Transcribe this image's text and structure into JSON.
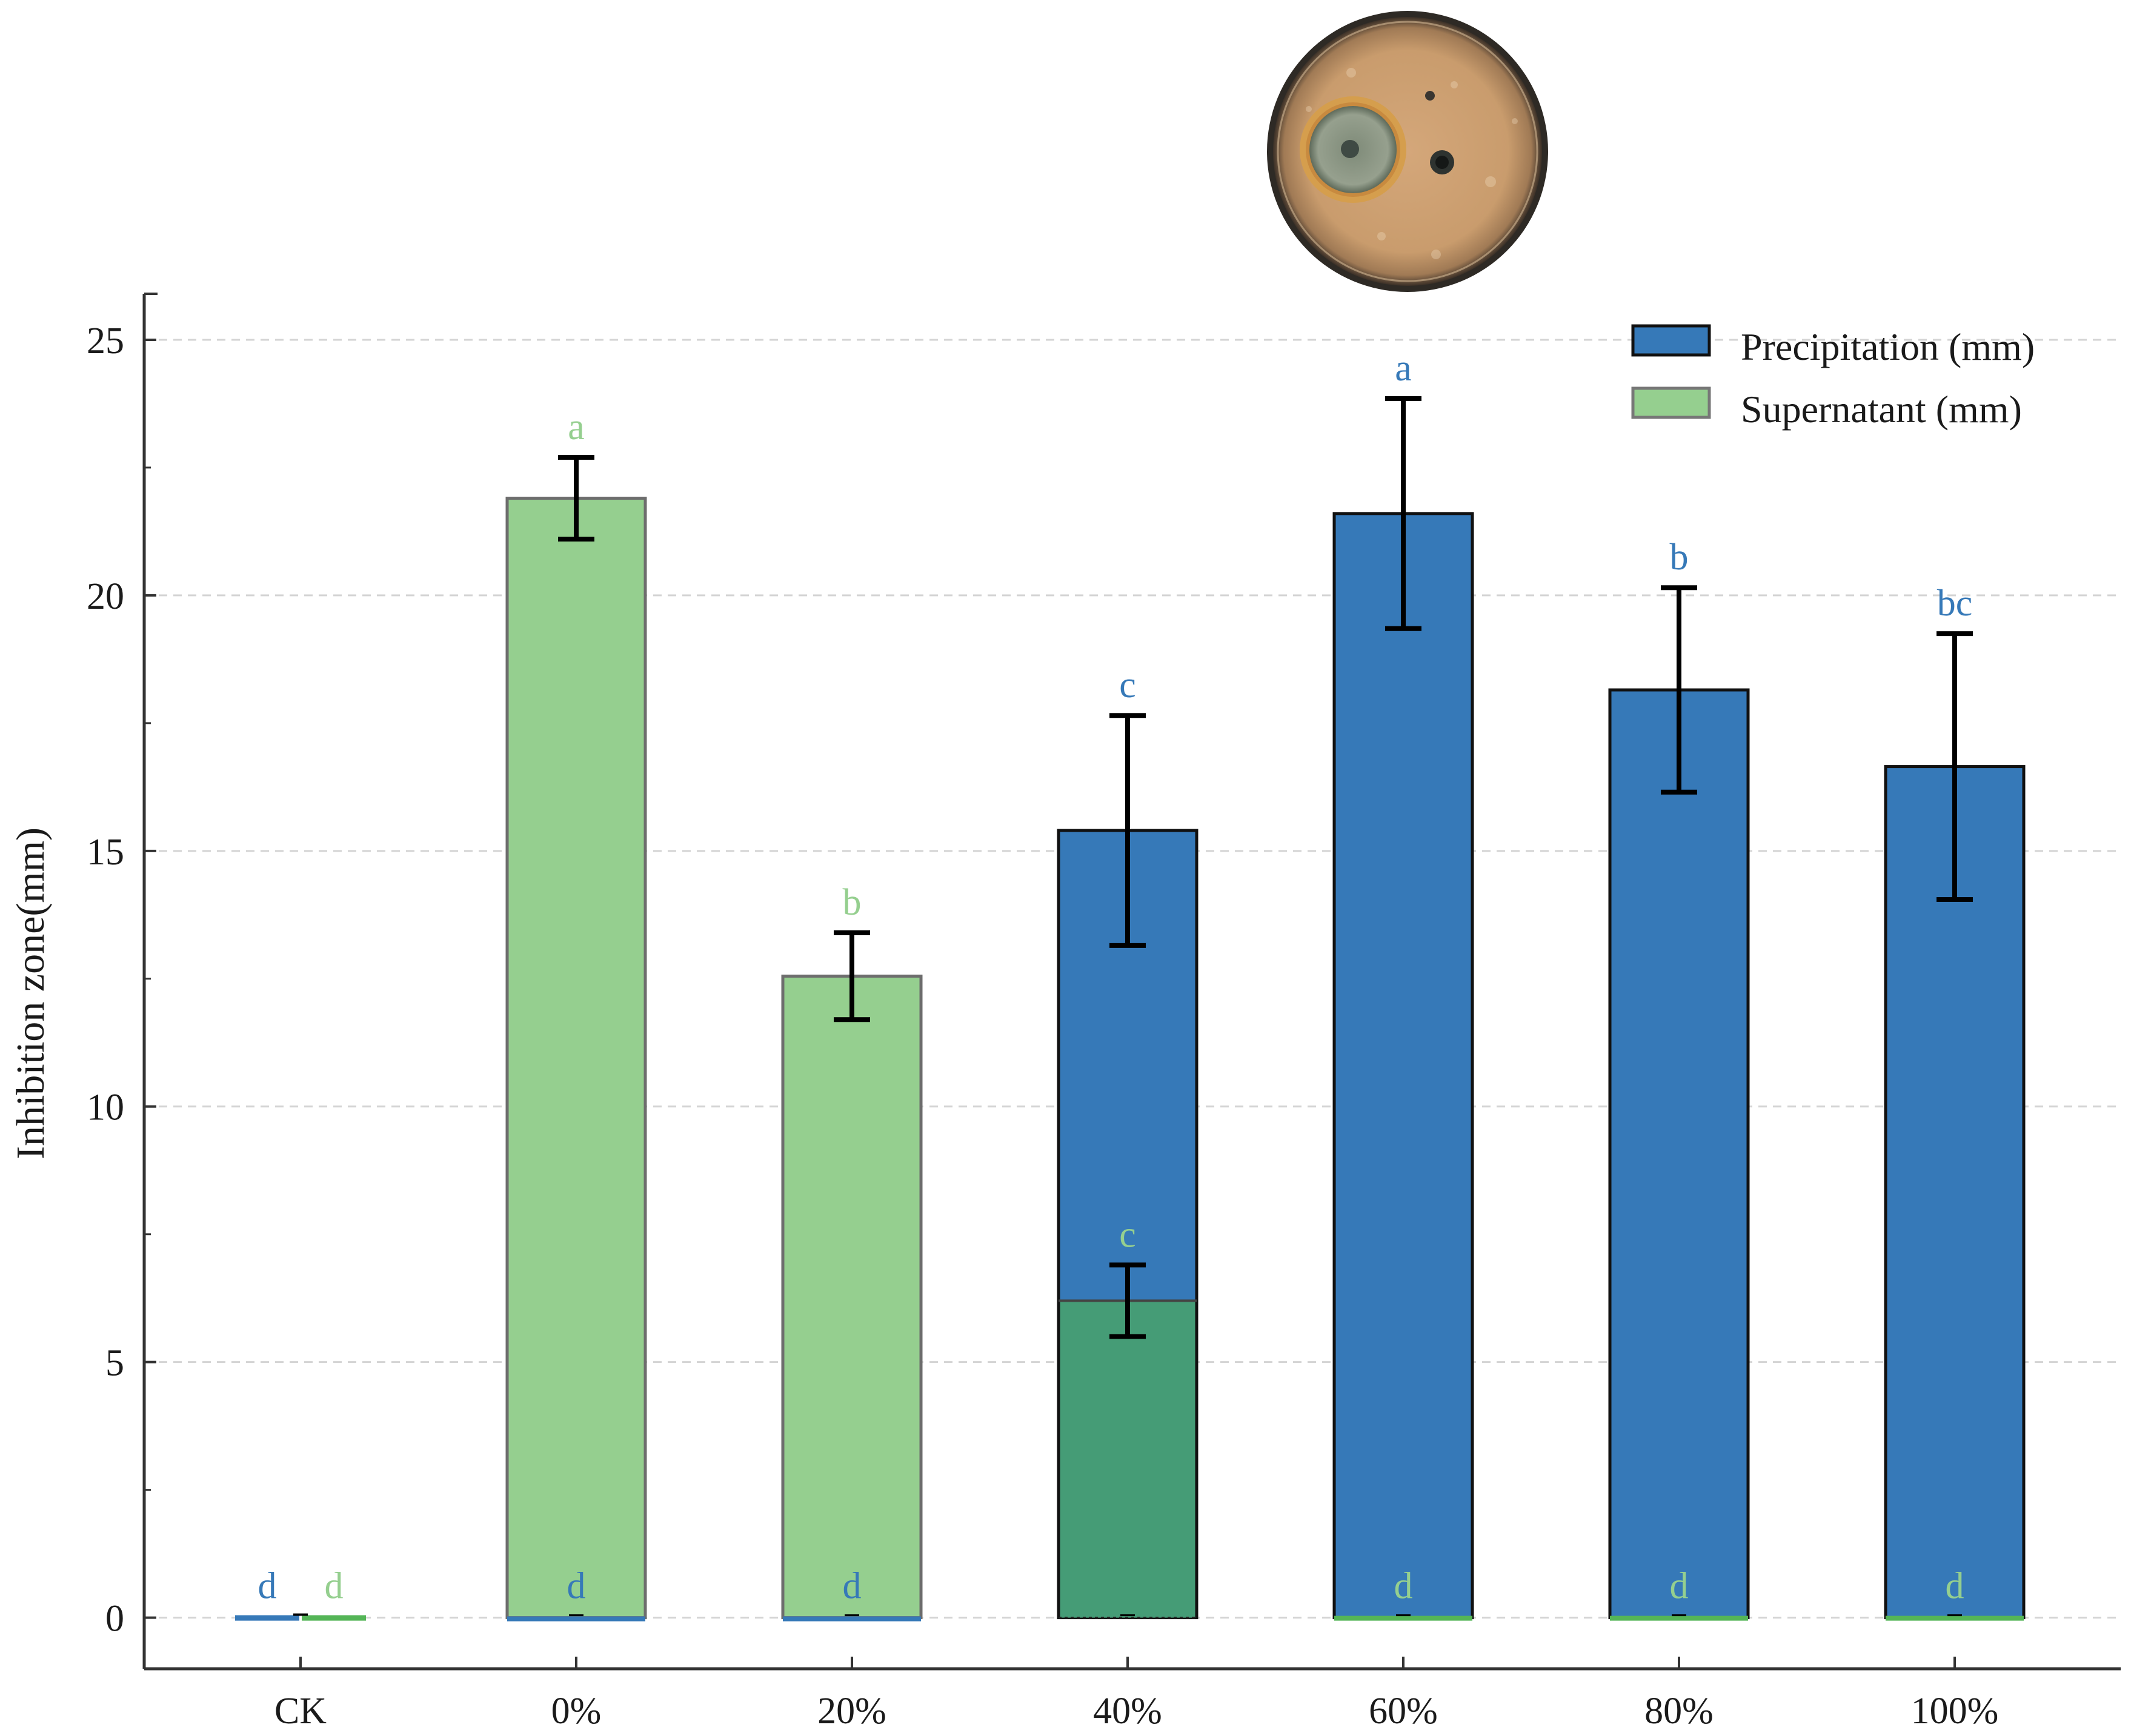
{
  "chart_data": {
    "type": "bar",
    "ylabel": "Inhibition zone(mm)",
    "xlabel": "",
    "ylim": [
      -1,
      25.9
    ],
    "yticks": [
      0,
      5,
      10,
      15,
      20,
      25
    ],
    "grid": "horizontal-dashed",
    "legend_position": "top-right",
    "categories": [
      "CK",
      "0%",
      "20%",
      "40%",
      "60%",
      "80%",
      "100%"
    ],
    "series": [
      {
        "name": "Precipitation (mm)",
        "color": "#3679b8",
        "values": [
          0,
          0,
          0,
          15.4,
          21.6,
          18.15,
          16.65
        ],
        "errors": [
          0,
          0,
          0,
          2.25,
          2.25,
          2.0,
          2.6
        ],
        "letters": [
          "d",
          "d",
          "d",
          "c",
          "a",
          "b",
          "bc"
        ],
        "letter_color": "#3679b8"
      },
      {
        "name": "Supernatant (mm)",
        "color": "#95cf8f",
        "values": [
          0,
          21.9,
          12.55,
          6.2,
          0,
          0,
          0
        ],
        "errors": [
          0,
          0.8,
          0.85,
          0.7,
          0,
          0,
          0
        ],
        "letters": [
          "d",
          "a",
          "b",
          "c",
          "d",
          "d",
          "d"
        ],
        "letter_color": "#95cf8f"
      }
    ],
    "overlap_color": "#459c76",
    "inset_image": "petri-dish"
  }
}
